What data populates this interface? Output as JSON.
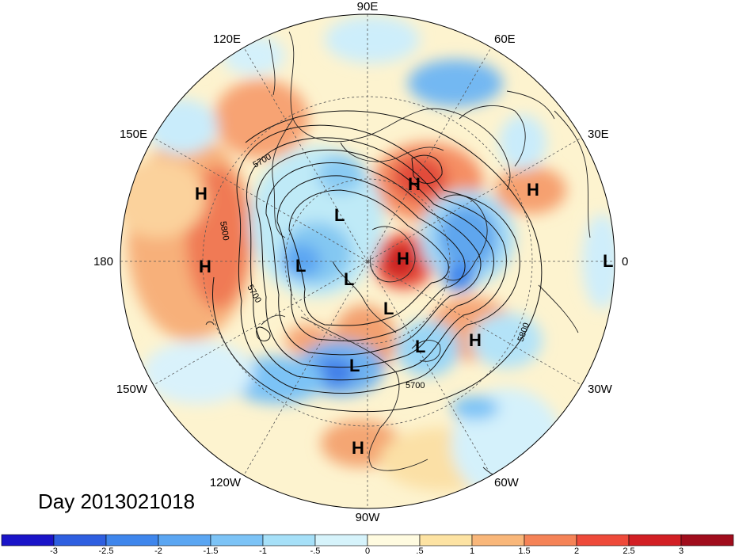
{
  "title": "Day 2013021018",
  "longitude_labels": [
    "90E",
    "60E",
    "30E",
    "0",
    "30W",
    "60W",
    "90W",
    "120W",
    "150W",
    "180",
    "150E",
    "120E"
  ],
  "pressure_centers": [
    {
      "type": "H",
      "lon_label": "150E area"
    },
    {
      "type": "H",
      "lon_label": "180 area"
    },
    {
      "type": "H",
      "lon_label": "Siberia"
    },
    {
      "type": "H",
      "lon_label": "Europe east"
    },
    {
      "type": "H",
      "lon_label": "Arctic"
    },
    {
      "type": "H",
      "lon_label": "North Atlantic"
    },
    {
      "type": "H",
      "lon_label": "Mexico"
    },
    {
      "type": "L",
      "lon_label": "NE Siberia"
    },
    {
      "type": "L",
      "lon_label": "Alaska"
    },
    {
      "type": "L",
      "lon_label": "Arctic Canada"
    },
    {
      "type": "L",
      "lon_label": "Baffin"
    },
    {
      "type": "L",
      "lon_label": "Great Lakes"
    },
    {
      "type": "L",
      "lon_label": "Labrador Sea"
    },
    {
      "type": "L",
      "lon_label": "Greenwich"
    }
  ],
  "contour_labels": [
    "5700",
    "5800",
    "5700",
    "5800",
    "5700"
  ],
  "colorbar": {
    "ticks": [
      "-3",
      "-2.5",
      "-2",
      "-1.5",
      "-1",
      "-.5",
      "0",
      ".5",
      "1",
      "1.5",
      "2",
      "2.5",
      "3"
    ],
    "colors": [
      "#1a14c8",
      "#2e5fe0",
      "#3f86ec",
      "#5ba6f2",
      "#7cc3f6",
      "#a6e0f8",
      "#d6f3fb",
      "#fffbe0",
      "#fde3a3",
      "#f9b77a",
      "#f58357",
      "#ee4a3a",
      "#d21f24",
      "#a00d1c"
    ]
  }
}
